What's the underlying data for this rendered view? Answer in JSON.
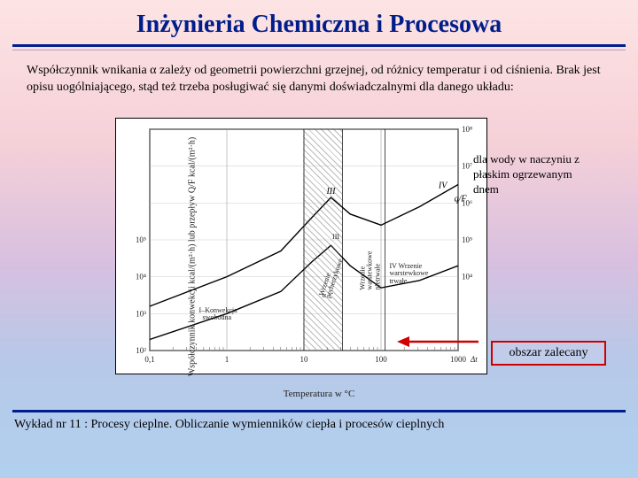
{
  "title": "Inżynieria Chemiczna i Procesowa",
  "intro": "Współczynnik wnikania α zależy od geometrii powierzchni grzejnej, od różnicy temperatur i od ciśnienia. Brak jest opisu uogólniającego, stąd też trzeba posługiwać się danymi doświadczalnymi dla danego układu:",
  "callout1": "dla wody w naczyniu z płaskim ogrzewanym dnem",
  "callout2": "obszar zalecany",
  "footer": "Wykład nr 11  : Procesy cieplne.  Obliczanie wymienników ciepła i procesów cieplnych",
  "chart": {
    "type": "line",
    "xlabel": "Temperatura w °C",
    "ylabel": "Współczynnik konwekcji kcal/(m²·h) lub przepływ Q/F kcal/(m²·h)",
    "x_scale": "log",
    "y_scale": "log",
    "xlim": [
      0.1,
      1000
    ],
    "ylim": [
      100.0,
      100000000.0
    ],
    "xticks": [
      0.1,
      1,
      10,
      100,
      1000
    ],
    "xtick_labels": [
      "0,1",
      "1",
      "10",
      "100",
      "1000"
    ],
    "xtick_extra": {
      "pos": 1000,
      "label": "Δt"
    },
    "yticks_left": [
      100.0,
      1000.0,
      10000.0,
      100000.0
    ],
    "ytick_labels_left": [
      "10²",
      "10³",
      "10⁴",
      "10⁵"
    ],
    "yticks_right": [
      10000.0,
      100000.0,
      1000000.0,
      10000000.0,
      100000000.0
    ],
    "ytick_labels_right": [
      "10⁴",
      "10⁵",
      "10⁶",
      "10⁷",
      "10⁸"
    ],
    "background_color": "#ffffff",
    "axis_color": "#000000",
    "grid_color": "#cccccc",
    "line_color": "#000000",
    "line_width": 1.4,
    "curves": {
      "alpha": {
        "label": "α",
        "points_logx_logy": [
          [
            -1,
            2.3
          ],
          [
            0,
            3.0
          ],
          [
            0.7,
            3.6
          ],
          [
            1.1,
            4.4
          ],
          [
            1.35,
            4.85
          ],
          [
            1.6,
            4.3
          ],
          [
            2.0,
            3.7
          ],
          [
            2.5,
            3.9
          ],
          [
            3.0,
            4.3
          ]
        ]
      },
      "qF": {
        "label": "q/F",
        "points_logx_logy": [
          [
            -1,
            3.2
          ],
          [
            0,
            4.0
          ],
          [
            0.7,
            4.7
          ],
          [
            1.1,
            5.6
          ],
          [
            1.35,
            6.15
          ],
          [
            1.6,
            5.7
          ],
          [
            2.0,
            5.4
          ],
          [
            2.5,
            5.9
          ],
          [
            3.0,
            6.5
          ]
        ]
      }
    },
    "hatched_zone_logx": [
      1.0,
      1.5
    ],
    "region_labels_roman": [
      "I",
      "II",
      "III",
      "IV"
    ],
    "region_labels_top": {
      "III": {
        "logx": 1.35,
        "logy": 6.25
      },
      "IV": {
        "logx": 2.8,
        "logy": 6.4
      },
      "qF": {
        "logx": 2.95,
        "logy": 6.05
      }
    },
    "inner_annotations": {
      "konwekcja": {
        "text": "I–Konwekcja\n  swobodna",
        "logx": -0.35,
        "logy": 3.15
      },
      "pech": {
        "text": "Wrzenie\npęcherzykowe",
        "logx": 1.1,
        "logy": 4.15,
        "rotate": -72
      },
      "nietrwale": {
        "text": "Wrzenie\nwarstewkowe\nnietrwałe",
        "logx": 1.62,
        "logy": 4.45,
        "rotate": -90
      },
      "trwale": {
        "text": "IV Wrzenie\nwarstewkowe\ntrwałe",
        "logx": 2.12,
        "logy": 4.35
      },
      "III_mid": {
        "text": "III",
        "logx": 1.38,
        "logy": 5.15
      },
      "alpha_mid": {
        "text": "α",
        "logx": 1.25,
        "logy": 3.55
      }
    },
    "arrow": {
      "color": "#d00000",
      "from_logx": 2.08,
      "to_logx": 1.48,
      "logy": 3.45
    }
  }
}
